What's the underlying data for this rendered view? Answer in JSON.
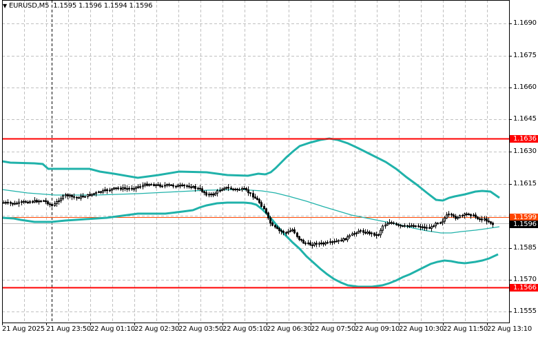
{
  "header": {
    "symbol": "EURUSD,M5",
    "ohlc": "1.1595 1.1596 1.1594 1.1596"
  },
  "colors": {
    "background": "#ffffff",
    "grid": "#c0c0c0",
    "bands": "#20b2aa",
    "level_lines": "#ff0000",
    "ask_line": "#ff4500",
    "bid_line": "#c0c0c0",
    "candle": "#000000"
  },
  "y_axis": {
    "labels": [
      "1.1690",
      "1.1675",
      "1.1660",
      "1.1645",
      "1.1630",
      "1.1615",
      "1.1585",
      "1.1570",
      "1.1555"
    ]
  },
  "price_tags": {
    "resistance": "1.1636",
    "ask": "1.1599",
    "bid": "1.1596",
    "support": "1.1566"
  },
  "x_axis": {
    "labels": [
      "21 Aug 2025",
      "21 Aug 23:50",
      "22 Aug 01:10",
      "22 Aug 02:30",
      "22 Aug 03:50",
      "22 Aug 05:10",
      "22 Aug 06:30",
      "22 Aug 07:50",
      "22 Aug 09:10",
      "22 Aug 10:30",
      "22 Aug 11:50",
      "22 Aug 13:10"
    ]
  },
  "chart_data": {
    "type": "candlestick",
    "title": "EURUSD,M5",
    "indicators": [
      "Bollinger Bands (upper, middle, lower)"
    ],
    "horizontal_levels": [
      {
        "name": "resistance",
        "value": 1.1636,
        "color": "#ff0000"
      },
      {
        "name": "support",
        "value": 1.1566,
        "color": "#ff0000"
      },
      {
        "name": "ask",
        "value": 1.1599,
        "color": "#ff4500"
      },
      {
        "name": "bid",
        "value": 1.1596,
        "color": "#c0c0c0"
      }
    ],
    "ylim": [
      1.1548,
      1.17
    ],
    "y_ticks": [
      1.1555,
      1.157,
      1.1585,
      1.16,
      1.1615,
      1.163,
      1.1645,
      1.166,
      1.1675,
      1.169
    ],
    "x_ticks": [
      "21 Aug 2025",
      "21 Aug 23:50",
      "22 Aug 01:10",
      "22 Aug 02:30",
      "22 Aug 03:50",
      "22 Aug 05:10",
      "22 Aug 06:30",
      "22 Aug 07:50",
      "22 Aug 09:10",
      "22 Aug 10:30",
      "22 Aug 11:50",
      "22 Aug 13:10"
    ],
    "last_ohlc": {
      "open": 1.1595,
      "high": 1.1596,
      "low": 1.1594,
      "close": 1.1596
    },
    "approx_path": [
      {
        "time": "21 Aug 2025",
        "price": 1.1607
      },
      {
        "time": "21 Aug 23:50",
        "price": 1.1605
      },
      {
        "time": "22 Aug 01:10",
        "price": 1.161
      },
      {
        "time": "22 Aug 02:30",
        "price": 1.1613
      },
      {
        "time": "22 Aug 03:50",
        "price": 1.161
      },
      {
        "time": "22 Aug 05:10",
        "price": 1.1606
      },
      {
        "time": "22 Aug 06:30",
        "price": 1.1592
      },
      {
        "time": "22 Aug 07:50",
        "price": 1.1589
      },
      {
        "time": "22 Aug 09:10",
        "price": 1.1596
      },
      {
        "time": "22 Aug 10:30",
        "price": 1.1596
      },
      {
        "time": "22 Aug 11:50",
        "price": 1.16
      },
      {
        "time": "22 Aug 13:10",
        "price": 1.1596
      }
    ],
    "grid": true
  }
}
